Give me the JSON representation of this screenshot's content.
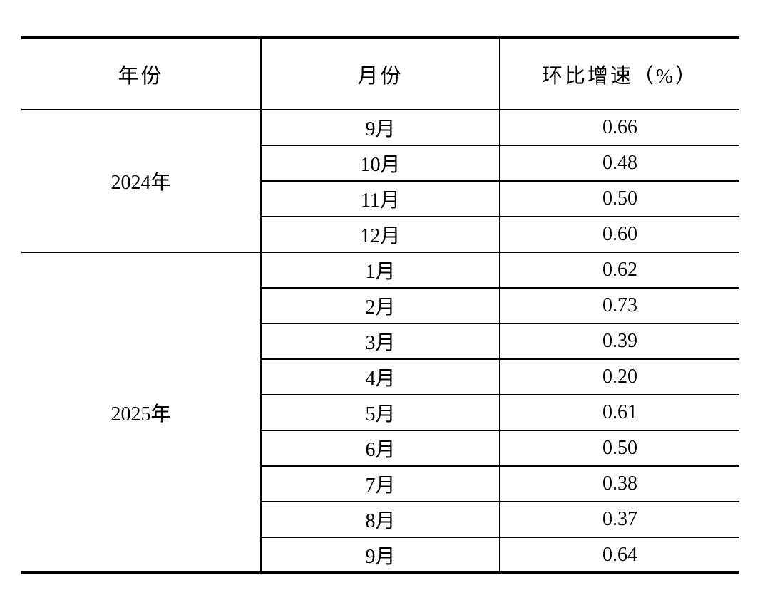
{
  "table": {
    "headers": [
      "年份",
      "月份",
      "环比增速（%）"
    ],
    "groups": [
      {
        "year": "2024年",
        "rows": [
          {
            "month": "9月",
            "value": "0.66"
          },
          {
            "month": "10月",
            "value": "0.48"
          },
          {
            "month": "11月",
            "value": "0.50"
          },
          {
            "month": "12月",
            "value": "0.60"
          }
        ]
      },
      {
        "year": "2025年",
        "rows": [
          {
            "month": "1月",
            "value": "0.62"
          },
          {
            "month": "2月",
            "value": "0.73"
          },
          {
            "month": "3月",
            "value": "0.39"
          },
          {
            "month": "4月",
            "value": "0.20"
          },
          {
            "month": "5月",
            "value": "0.61"
          },
          {
            "month": "6月",
            "value": "0.50"
          },
          {
            "month": "7月",
            "value": "0.38"
          },
          {
            "month": "8月",
            "value": "0.37"
          },
          {
            "month": "9月",
            "value": "0.64"
          }
        ]
      }
    ]
  }
}
